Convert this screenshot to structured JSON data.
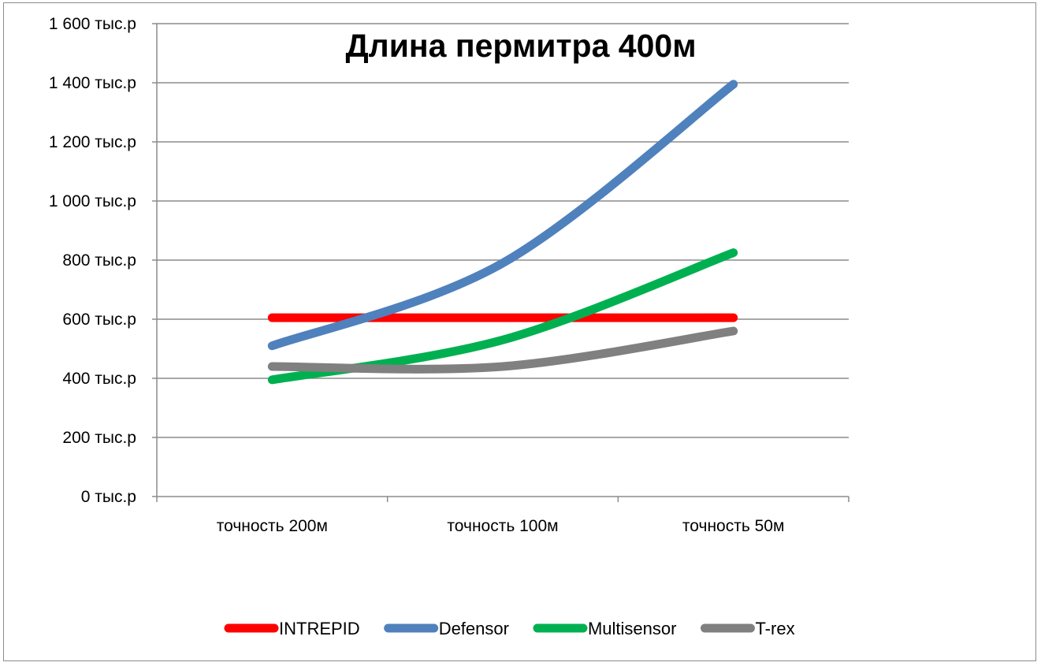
{
  "chart_data": {
    "type": "line",
    "title": "Длина пермитра 400м",
    "categories": [
      "точность 200м",
      "точность 100м",
      "точность 50м"
    ],
    "ylim": [
      0,
      1600
    ],
    "yticks": [
      0,
      200,
      400,
      600,
      800,
      1000,
      1200,
      1400,
      1600
    ],
    "ytick_labels": [
      "0 тыс.р",
      "200 тыс.р",
      "400 тыс.р",
      "600 тыс.р",
      "800 тыс.р",
      "1 000 тыс.р",
      "1 200 тыс.р",
      "1 400 тыс.р",
      "1 600 тыс.р"
    ],
    "grid": true,
    "smooth": true,
    "legend_position": "bottom",
    "series": [
      {
        "name": "INTREPID",
        "color": "#ff0000",
        "values": [
          605,
          605,
          605
        ]
      },
      {
        "name": "Defensor",
        "color": "#4f81bd",
        "values": [
          510,
          790,
          1395
        ]
      },
      {
        "name": "Multisensor",
        "color": "#00b050",
        "values": [
          395,
          530,
          825
        ]
      },
      {
        "name": "T-rex",
        "color": "#808080",
        "values": [
          440,
          440,
          560
        ]
      }
    ]
  }
}
